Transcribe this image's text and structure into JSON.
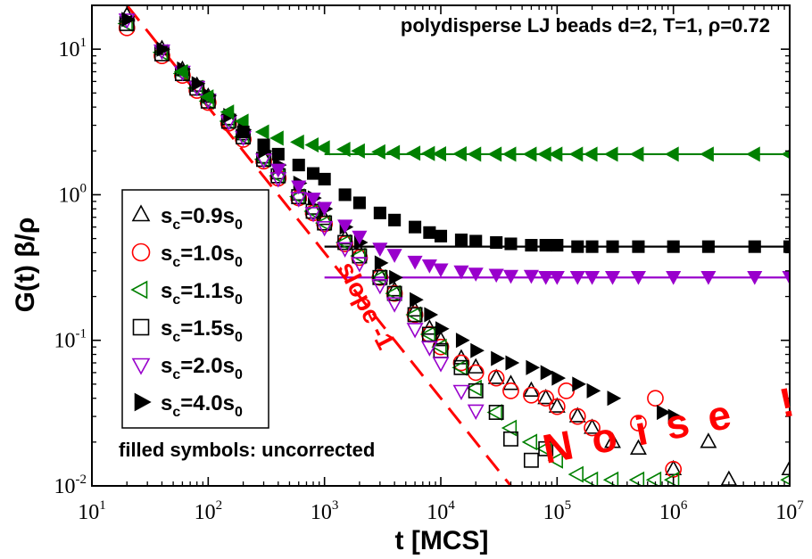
{
  "chart_data": {
    "type": "scatter",
    "title": "polydisperse LJ beads d=2, T=1, ρ=0.72",
    "xlabel": "t [MCS]",
    "ylabel": "G(t) β/ρ",
    "xscale": "log",
    "yscale": "log",
    "xlim": [
      10,
      10000000
    ],
    "ylim": [
      0.01,
      20
    ],
    "x_ticks": [
      {
        "base": "10",
        "exp": "1",
        "value": 10
      },
      {
        "base": "10",
        "exp": "2",
        "value": 100
      },
      {
        "base": "10",
        "exp": "3",
        "value": 1000
      },
      {
        "base": "10",
        "exp": "4",
        "value": 10000
      },
      {
        "base": "10",
        "exp": "5",
        "value": 100000
      },
      {
        "base": "10",
        "exp": "6",
        "value": 1000000
      },
      {
        "base": "10",
        "exp": "7",
        "value": 10000000
      }
    ],
    "y_ticks": [
      {
        "base": "10",
        "exp": "-2",
        "value": 0.01
      },
      {
        "base": "10",
        "exp": "-1",
        "value": 0.1
      },
      {
        "base": "10",
        "exp": "0",
        "value": 1
      },
      {
        "base": "10",
        "exp": "1",
        "value": 10
      }
    ],
    "series": [
      {
        "name": "s_c=0.9s_0",
        "label_main": "s",
        "label_sub1": "c",
        "label_mid": "=0.9s",
        "label_sub2": "0",
        "marker": "triangle-up",
        "color": "#000000",
        "filled": false,
        "x": [
          20,
          40,
          60,
          80,
          100,
          150,
          200,
          300,
          400,
          600,
          800,
          1000,
          1500,
          2000,
          3000,
          4000,
          6000,
          8000,
          10000,
          15000,
          20000,
          30000,
          40000,
          60000,
          80000,
          100000,
          150000,
          200000,
          300000,
          500000,
          1000000,
          2000000,
          3000000,
          10000000
        ],
        "y": [
          17,
          10,
          7.2,
          5.6,
          4.7,
          3.3,
          2.6,
          1.8,
          1.4,
          1.0,
          0.8,
          0.68,
          0.5,
          0.4,
          0.28,
          0.22,
          0.16,
          0.12,
          0.1,
          0.075,
          0.065,
          0.055,
          0.05,
          0.045,
          0.04,
          0.035,
          0.03,
          0.025,
          0.02,
          0.018,
          0.013,
          0.02,
          0.011,
          0.013
        ]
      },
      {
        "name": "s_c=1.0s_0",
        "label_main": "s",
        "label_sub1": "c",
        "label_mid": "=1.0s",
        "label_sub2": "0",
        "marker": "circle",
        "color": "#ff0000",
        "filled": false,
        "x": [
          20,
          40,
          60,
          80,
          100,
          150,
          200,
          300,
          400,
          600,
          800,
          1000,
          1500,
          2000,
          3000,
          4000,
          6000,
          8000,
          10000,
          15000,
          20000,
          30000,
          40000,
          60000,
          80000,
          100000,
          120000,
          150000,
          200000,
          500000,
          700000,
          1000000
        ],
        "y": [
          14,
          9,
          6.6,
          5.2,
          4.3,
          3.1,
          2.4,
          1.7,
          1.3,
          0.95,
          0.75,
          0.63,
          0.46,
          0.37,
          0.27,
          0.21,
          0.15,
          0.11,
          0.09,
          0.07,
          0.06,
          0.055,
          0.045,
          0.042,
          0.04,
          0.035,
          0.045,
          0.03,
          0.025,
          0.027,
          0.04,
          0.013
        ]
      },
      {
        "name": "s_c=1.1s_0",
        "label_main": "s",
        "label_sub1": "c",
        "label_mid": "=1.1s",
        "label_sub2": "0",
        "marker": "triangle-left",
        "color": "#008000",
        "filled": false,
        "x": [
          20,
          40,
          60,
          80,
          100,
          150,
          200,
          300,
          400,
          600,
          800,
          1000,
          1500,
          2000,
          3000,
          4000,
          6000,
          8000,
          10000,
          15000,
          20000,
          30000,
          40000,
          60000,
          80000,
          100000,
          150000,
          200000,
          300000,
          500000,
          700000,
          1000000,
          10000000
        ],
        "y": [
          15,
          9.5,
          6.8,
          5.4,
          4.4,
          3.2,
          2.5,
          1.75,
          1.35,
          0.97,
          0.77,
          0.64,
          0.47,
          0.38,
          0.27,
          0.21,
          0.15,
          0.11,
          0.09,
          0.065,
          0.047,
          0.032,
          0.025,
          0.02,
          0.018,
          0.015,
          0.012,
          0.011,
          0.011,
          0.011,
          0.011,
          0.011,
          0.011
        ]
      },
      {
        "name": "s_c=1.5s_0",
        "label_main": "s",
        "label_sub1": "c",
        "label_mid": "=1.5s",
        "label_sub2": "0",
        "marker": "square",
        "color": "#000000",
        "filled": false,
        "x": [
          20,
          40,
          60,
          80,
          100,
          150,
          200,
          300,
          400,
          600,
          800,
          1000,
          1500,
          2000,
          3000,
          4000,
          6000,
          8000,
          10000,
          15000,
          20000,
          30000,
          40000,
          60000,
          80000
        ],
        "y": [
          15,
          9.3,
          6.8,
          5.4,
          4.4,
          3.2,
          2.5,
          1.75,
          1.35,
          0.97,
          0.77,
          0.64,
          0.47,
          0.38,
          0.27,
          0.21,
          0.15,
          0.11,
          0.085,
          0.065,
          0.045,
          0.032,
          0.021,
          0.015,
          0.018
        ]
      },
      {
        "name": "s_c=2.0s_0",
        "label_main": "s",
        "label_sub1": "c",
        "label_mid": "=2.0s",
        "label_sub2": "0",
        "marker": "triangle-down",
        "color": "#9900cc",
        "filled": false,
        "x": [
          20,
          40,
          60,
          80,
          100,
          150,
          200,
          300,
          400,
          600,
          800,
          1000,
          1500,
          2000,
          3000,
          4000,
          6000,
          8000,
          10000,
          15000,
          20000
        ],
        "y": [
          16,
          9.8,
          7.0,
          5.5,
          4.5,
          3.2,
          2.5,
          1.75,
          1.3,
          0.95,
          0.75,
          0.6,
          0.43,
          0.34,
          0.24,
          0.18,
          0.12,
          0.09,
          0.07,
          0.045,
          0.033
        ]
      },
      {
        "name": "s_c=4.0s_0",
        "label_main": "s",
        "label_sub1": "c",
        "label_mid": "=4.0s",
        "label_sub2": "0",
        "marker": "triangle-right",
        "color": "#000000",
        "filled": true,
        "x": [
          20,
          40,
          60,
          80,
          100,
          150,
          200,
          300,
          400,
          600,
          800,
          1000,
          1500,
          2000,
          3000,
          4000,
          6000,
          8000,
          10000,
          15000,
          20000,
          30000,
          40000,
          60000,
          80000,
          100000,
          150000,
          200000,
          300000,
          800000,
          1000000
        ],
        "y": [
          16,
          10,
          7.3,
          5.8,
          4.8,
          3.5,
          2.8,
          2.0,
          1.6,
          1.2,
          0.95,
          0.8,
          0.6,
          0.47,
          0.34,
          0.27,
          0.19,
          0.15,
          0.12,
          0.1,
          0.085,
          0.075,
          0.07,
          0.065,
          0.06,
          0.055,
          0.05,
          0.045,
          0.04,
          0.032,
          0.03
        ]
      },
      {
        "name": "s_c=1.1s_0 uncorrected",
        "marker": "triangle-left",
        "color": "#008000",
        "filled": true,
        "legend": false,
        "x": [
          60,
          100,
          150,
          200,
          300,
          400,
          600,
          800,
          1000,
          1500,
          2000,
          3000,
          4000,
          6000,
          8000,
          10000,
          15000,
          20000,
          30000,
          40000,
          60000,
          80000,
          100000,
          150000,
          200000,
          300000,
          500000,
          1000000,
          2000000,
          5000000,
          10000000
        ],
        "y": [
          7,
          4.7,
          3.7,
          3.2,
          2.7,
          2.45,
          2.3,
          2.2,
          2.1,
          2.05,
          2.0,
          1.97,
          1.95,
          1.93,
          1.92,
          1.91,
          1.91,
          1.9,
          1.9,
          1.9,
          1.9,
          1.9,
          1.9,
          1.9,
          1.9,
          1.9,
          1.9,
          1.9,
          1.9,
          1.9,
          1.9
        ]
      },
      {
        "name": "s_c=1.5s_0 uncorrected",
        "marker": "square",
        "color": "#000000",
        "filled": true,
        "legend": false,
        "x": [
          200,
          300,
          400,
          600,
          800,
          1000,
          1500,
          2000,
          3000,
          4000,
          6000,
          8000,
          10000,
          15000,
          20000,
          30000,
          40000,
          60000,
          80000,
          100000,
          150000,
          200000,
          300000,
          500000,
          1000000,
          2000000,
          5000000,
          10000000
        ],
        "y": [
          2.7,
          2.2,
          1.9,
          1.6,
          1.4,
          1.28,
          1.0,
          0.88,
          0.75,
          0.67,
          0.6,
          0.55,
          0.52,
          0.49,
          0.48,
          0.47,
          0.46,
          0.45,
          0.45,
          0.45,
          0.44,
          0.44,
          0.44,
          0.44,
          0.44,
          0.44,
          0.44,
          0.44
        ]
      },
      {
        "name": "s_c=2.0s_0 uncorrected",
        "marker": "triangle-down",
        "color": "#9900cc",
        "filled": true,
        "legend": false,
        "x": [
          400,
          600,
          800,
          1000,
          1500,
          2000,
          3000,
          4000,
          6000,
          8000,
          10000,
          15000,
          20000,
          30000,
          40000,
          60000,
          80000,
          100000,
          150000,
          200000,
          300000,
          500000,
          1000000,
          2000000,
          5000000,
          10000000
        ],
        "y": [
          1.5,
          1.15,
          0.95,
          0.82,
          0.62,
          0.52,
          0.43,
          0.39,
          0.35,
          0.33,
          0.31,
          0.3,
          0.29,
          0.285,
          0.28,
          0.28,
          0.275,
          0.275,
          0.275,
          0.275,
          0.275,
          0.275,
          0.275,
          0.275,
          0.275,
          0.275
        ]
      }
    ],
    "reference_lines": [
      {
        "name": "plateau-green",
        "color": "#008000",
        "x": [
          1000,
          10000000
        ],
        "y": [
          1.9,
          1.9
        ]
      },
      {
        "name": "plateau-black",
        "color": "#000000",
        "x": [
          1000,
          10000000
        ],
        "y": [
          0.44,
          0.44
        ]
      },
      {
        "name": "plateau-purple",
        "color": "#9900cc",
        "x": [
          1000,
          10000000
        ],
        "y": [
          0.27,
          0.27
        ]
      },
      {
        "name": "slope-line",
        "color": "#ff0000",
        "dashed": true,
        "x": [
          20,
          50000
        ],
        "y": [
          20,
          0.008
        ]
      }
    ],
    "annotations": {
      "slope": "slope -1",
      "noise": "Noise !",
      "uncorrected_note": "filled symbols: uncorrected"
    }
  }
}
